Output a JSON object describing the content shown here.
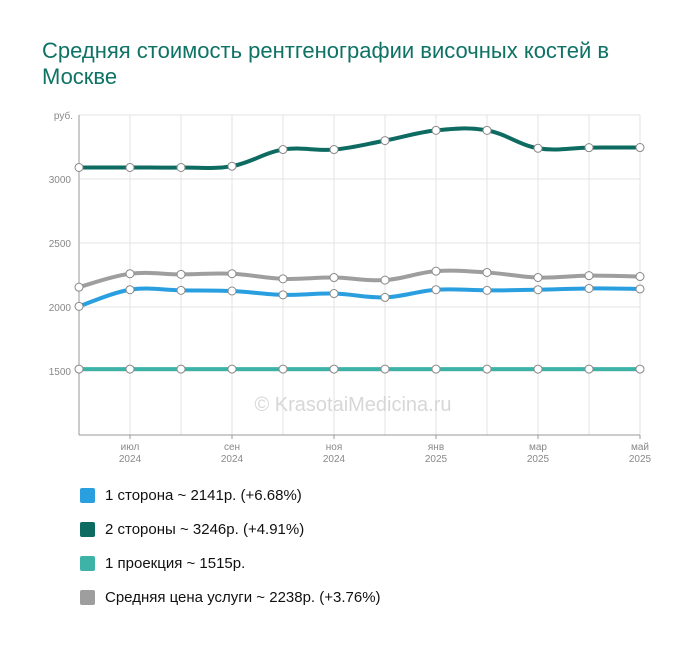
{
  "title": "Средняя стоимость рентгенографии височных костей в Москве",
  "watermark": "© KrasotaiMedicina.ru",
  "legend": [
    {
      "label": "1 сторона ~ 2141р. (+6.68%)",
      "color": "#2a9fe0"
    },
    {
      "label": "2 стороны ~ 3246р. (+4.91%)",
      "color": "#0e6b62"
    },
    {
      "label": "1 проекция ~ 1515р.",
      "color": "#3db3a8"
    },
    {
      "label": "Средняя цена услуги ~ 2238р. (+3.76%)",
      "color": "#9e9e9e"
    }
  ],
  "chart_data": {
    "type": "line",
    "title": "Средняя стоимость рентгенографии височных костей в Москве",
    "ylabel": "руб.",
    "ylim": [
      1000,
      3500
    ],
    "yticks": [
      1500,
      2000,
      2500,
      3000
    ],
    "xtick_labels": [
      {
        "month": "июл",
        "year": "2024"
      },
      {
        "month": "сен",
        "year": "2024"
      },
      {
        "month": "ноя",
        "year": "2024"
      },
      {
        "month": "янв",
        "year": "2025"
      },
      {
        "month": "мар",
        "year": "2025"
      },
      {
        "month": "май",
        "year": "2025"
      }
    ],
    "x": [
      "2024-06",
      "2024-07",
      "2024-08",
      "2024-09",
      "2024-10",
      "2024-11",
      "2024-12",
      "2025-01",
      "2025-02",
      "2025-03",
      "2025-04",
      "2025-05"
    ],
    "grid": true,
    "series": [
      {
        "name": "2 стороны",
        "color": "#0e6b62",
        "values": [
          3090,
          3090,
          3090,
          3100,
          3230,
          3230,
          3300,
          3380,
          3380,
          3240,
          3245,
          3246
        ]
      },
      {
        "name": "Средняя цена услуги",
        "color": "#9e9e9e",
        "values": [
          2155,
          2260,
          2255,
          2260,
          2220,
          2230,
          2210,
          2280,
          2270,
          2230,
          2245,
          2238
        ]
      },
      {
        "name": "1 сторона",
        "color": "#2a9fe0",
        "values": [
          2005,
          2135,
          2130,
          2125,
          2095,
          2105,
          2075,
          2135,
          2130,
          2135,
          2145,
          2141
        ]
      },
      {
        "name": "1 проекция",
        "color": "#3db3a8",
        "values": [
          1515,
          1515,
          1515,
          1515,
          1515,
          1515,
          1515,
          1515,
          1515,
          1515,
          1515,
          1515
        ]
      }
    ]
  }
}
